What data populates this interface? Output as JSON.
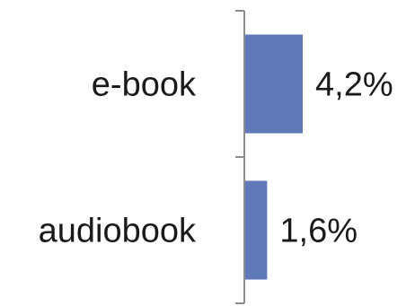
{
  "chart_data": {
    "type": "bar",
    "orientation": "horizontal",
    "categories": [
      "e-book",
      "audiobook"
    ],
    "values": [
      4.2,
      1.6
    ],
    "value_labels": [
      "4,2%",
      "1,6%"
    ],
    "title": "",
    "xlabel": "",
    "ylabel": "",
    "xlim": [
      0,
      4.2
    ],
    "grid": false,
    "legend": "none",
    "bar_color": "#5e78b8"
  }
}
